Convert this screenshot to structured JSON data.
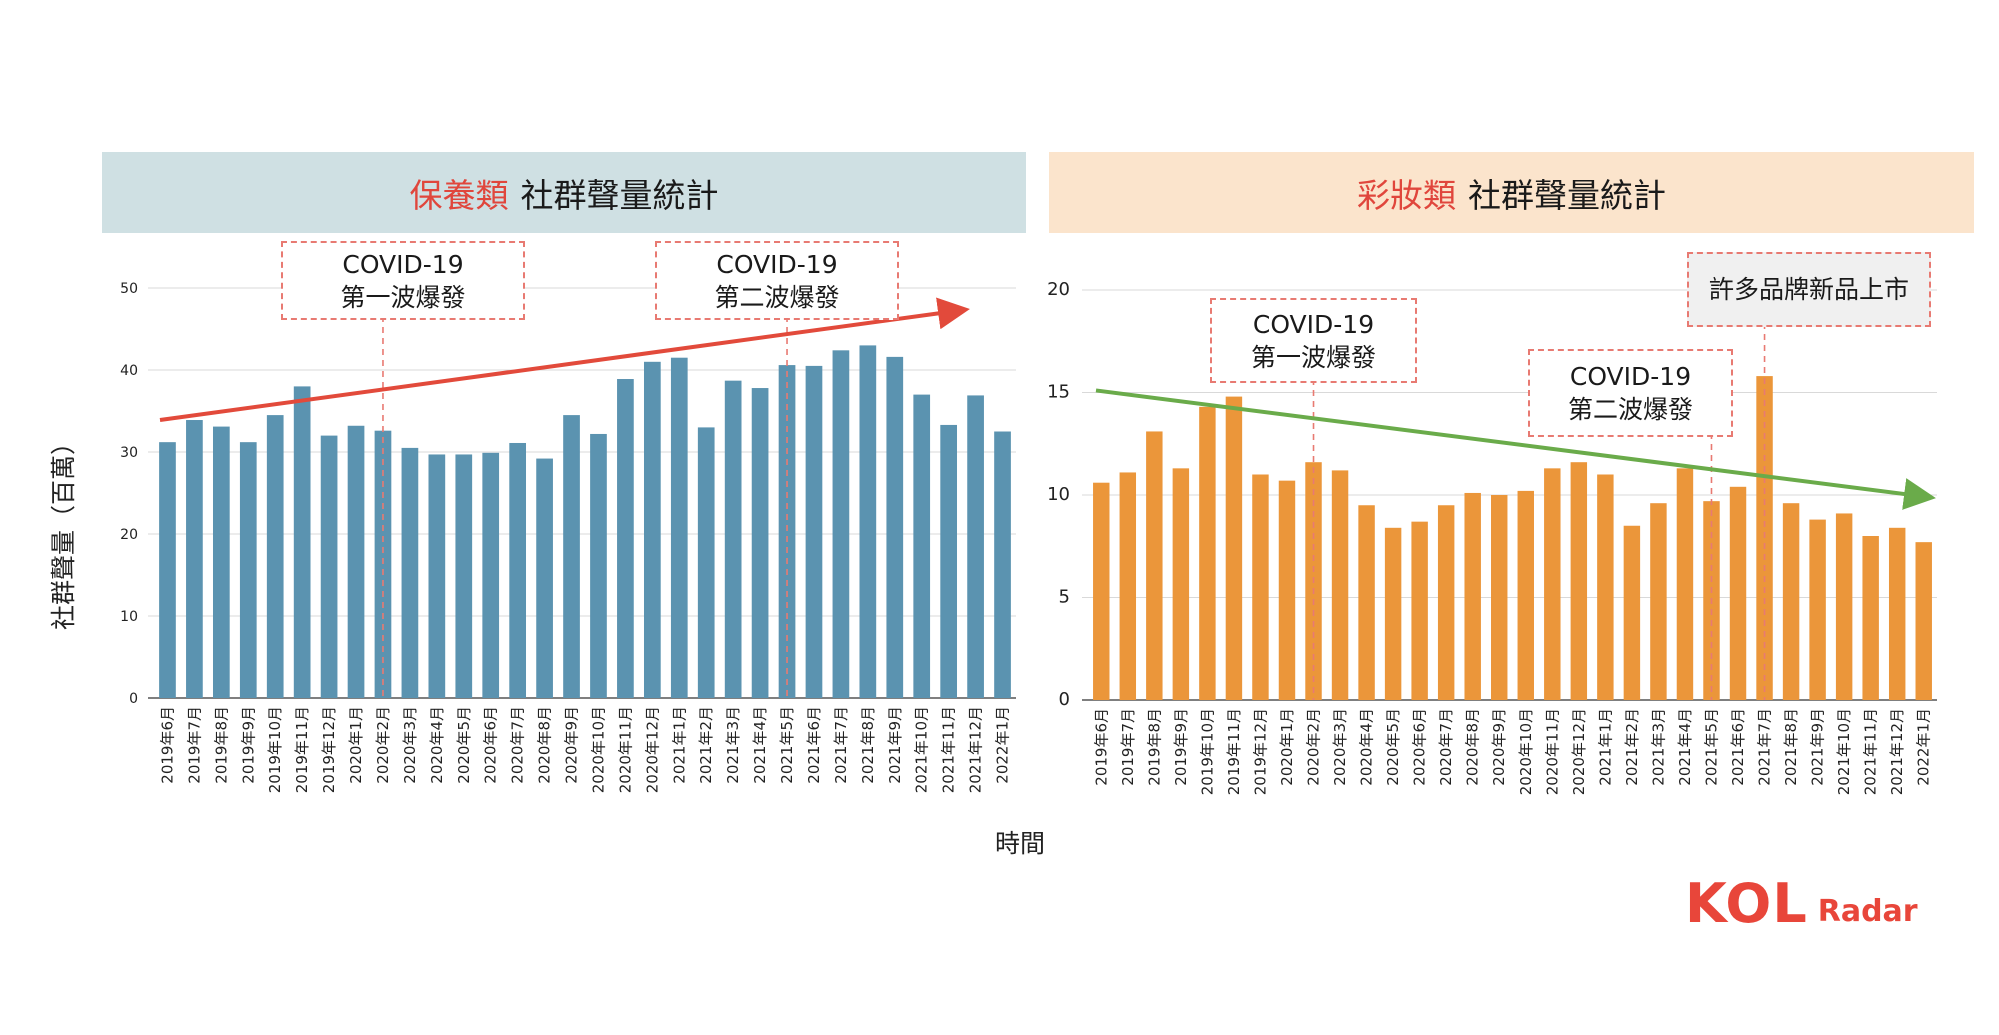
{
  "left_panel": {
    "title_accent": "保養類",
    "title_rest": "社群聲量統計"
  },
  "right_panel": {
    "title_accent": "彩妝類",
    "title_rest": "社群聲量統計"
  },
  "ylabel": "社群聲量（百萬）",
  "xlabel": "時間",
  "annotations": {
    "left_wave1": {
      "line1": "COVID-19",
      "line2": "第一波爆發"
    },
    "left_wave2": {
      "line1": "COVID-19",
      "line2": "第二波爆發"
    },
    "right_wave1": {
      "line1": "COVID-19",
      "line2": "第一波爆發"
    },
    "right_wave2": {
      "line1": "COVID-19",
      "line2": "第二波爆發"
    },
    "right_launch": {
      "text": "許多品牌新品上市"
    }
  },
  "logo": {
    "brand": "KOL",
    "suffix": "Radar"
  },
  "colors": {
    "left_bar": "#5b93b0",
    "right_bar": "#eb963a",
    "up_arrow": "#e24a3b",
    "down_arrow": "#6aab4a",
    "dashed": "#e87a72"
  },
  "chart_data": [
    {
      "type": "bar",
      "title": "保養類 社群聲量統計",
      "ylabel": "社群聲量（百萬）",
      "xlabel": "時間",
      "ylim": [
        0,
        50
      ],
      "yticks": [
        0,
        10,
        20,
        30,
        40,
        50
      ],
      "grid": true,
      "categories": [
        "2019年6月",
        "2019年7月",
        "2019年8月",
        "2019年9月",
        "2019年10月",
        "2019年11月",
        "2019年12月",
        "2020年1月",
        "2020年2月",
        "2020年3月",
        "2020年4月",
        "2020年5月",
        "2020年6月",
        "2020年7月",
        "2020年8月",
        "2020年9月",
        "2020年10月",
        "2020年11月",
        "2020年12月",
        "2021年1月",
        "2021年2月",
        "2021年3月",
        "2021年4月",
        "2021年5月",
        "2021年6月",
        "2021年7月",
        "2021年8月",
        "2021年9月",
        "2021年10月",
        "2021年11月",
        "2021年12月",
        "2022年1月"
      ],
      "values": [
        31.2,
        33.9,
        33.1,
        31.2,
        34.5,
        38.0,
        32.0,
        33.2,
        32.6,
        30.5,
        29.7,
        29.7,
        29.9,
        31.1,
        29.2,
        34.5,
        32.2,
        38.9,
        41.0,
        41.5,
        33.0,
        38.7,
        37.8,
        40.6,
        40.5,
        42.4,
        43.0,
        41.6,
        37.0,
        33.3,
        36.9,
        32.5
      ],
      "trend": {
        "direction": "up",
        "from": 33.9,
        "to": 47.3
      },
      "markers": [
        {
          "category": "2020年2月",
          "label": "COVID-19 第一波爆發"
        },
        {
          "category": "2021年5月",
          "label": "COVID-19 第二波爆發"
        }
      ]
    },
    {
      "type": "bar",
      "title": "彩妝類 社群聲量統計",
      "ylim": [
        0,
        20
      ],
      "yticks": [
        0,
        5,
        10,
        15,
        20
      ],
      "grid": true,
      "categories": [
        "2019年6月",
        "2019年7月",
        "2019年8月",
        "2019年9月",
        "2019年10月",
        "2019年11月",
        "2019年12月",
        "2020年1月",
        "2020年2月",
        "2020年3月",
        "2020年4月",
        "2020年5月",
        "2020年6月",
        "2020年7月",
        "2020年8月",
        "2020年9月",
        "2020年10月",
        "2020年11月",
        "2020年12月",
        "2021年1月",
        "2021年2月",
        "2021年3月",
        "2021年4月",
        "2021年5月",
        "2021年6月",
        "2021年7月",
        "2021年8月",
        "2021年9月",
        "2021年10月",
        "2021年11月",
        "2021年12月",
        "2022年1月"
      ],
      "values": [
        10.6,
        11.1,
        13.1,
        11.3,
        14.3,
        14.8,
        11.0,
        10.7,
        11.6,
        11.2,
        9.5,
        8.4,
        8.7,
        9.5,
        10.1,
        10.0,
        10.2,
        11.3,
        11.6,
        11.0,
        8.5,
        9.6,
        11.3,
        9.7,
        10.4,
        15.8,
        9.6,
        8.8,
        9.1,
        8.0,
        8.4,
        7.7
      ],
      "trend": {
        "direction": "down",
        "from": 15.1,
        "to": 9.9
      },
      "markers": [
        {
          "category": "2020年2月",
          "label": "COVID-19 第一波爆發"
        },
        {
          "category": "2021年5月",
          "label": "COVID-19 第二波爆發"
        },
        {
          "category": "2021年7月",
          "label": "許多品牌新品上市"
        }
      ]
    }
  ]
}
